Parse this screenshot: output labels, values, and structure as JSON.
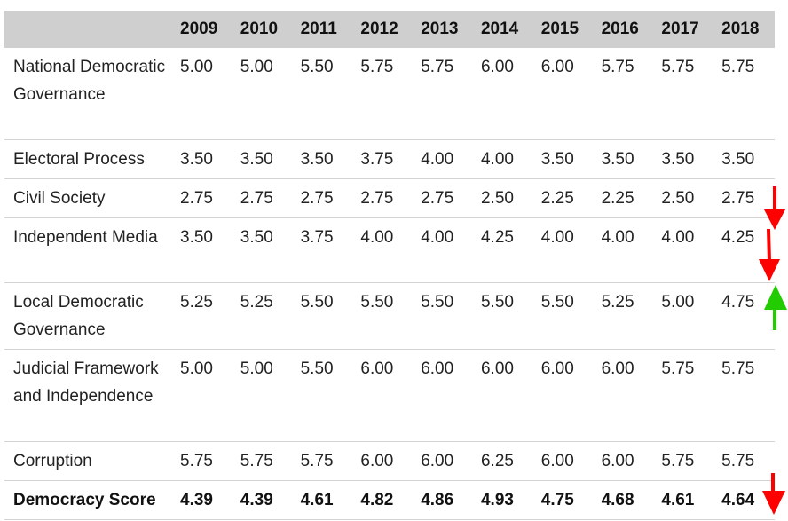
{
  "table": {
    "headers": [
      "",
      "2009",
      "2010",
      "2011",
      "2012",
      "2013",
      "2014",
      "2015",
      "2016",
      "2017",
      "2018"
    ],
    "rows": [
      {
        "label": "National Democratic Governance",
        "values": [
          "5.00",
          "5.00",
          "5.50",
          "5.75",
          "5.75",
          "6.00",
          "6.00",
          "5.75",
          "5.75",
          "5.75"
        ]
      },
      {
        "label": "Electoral Process",
        "values": [
          "3.50",
          "3.50",
          "3.50",
          "3.75",
          "4.00",
          "4.00",
          "3.50",
          "3.50",
          "3.50",
          "3.50"
        ]
      },
      {
        "label": "Civil Society",
        "values": [
          "2.75",
          "2.75",
          "2.75",
          "2.75",
          "2.75",
          "2.50",
          "2.25",
          "2.25",
          "2.50",
          "2.75"
        ]
      },
      {
        "label": "Independent Media",
        "values": [
          "3.50",
          "3.50",
          "3.75",
          "4.00",
          "4.00",
          "4.25",
          "4.00",
          "4.00",
          "4.00",
          "4.25"
        ]
      },
      {
        "label": "Local Democratic Governance",
        "values": [
          "5.25",
          "5.25",
          "5.50",
          "5.50",
          "5.50",
          "5.50",
          "5.50",
          "5.25",
          "5.00",
          "4.75"
        ]
      },
      {
        "label": "Judicial Framework and Independence",
        "values": [
          "5.00",
          "5.00",
          "5.50",
          "6.00",
          "6.00",
          "6.00",
          "6.00",
          "6.00",
          "5.75",
          "5.75"
        ]
      },
      {
        "label": "Corruption",
        "values": [
          "5.75",
          "5.75",
          "5.75",
          "6.00",
          "6.00",
          "6.25",
          "6.00",
          "6.00",
          "5.75",
          "5.75"
        ]
      },
      {
        "label": "Democracy Score",
        "values": [
          "4.39",
          "4.39",
          "4.61",
          "4.82",
          "4.86",
          "4.93",
          "4.75",
          "4.68",
          "4.61",
          "4.64"
        ]
      }
    ]
  },
  "annotations": [
    {
      "row": "Civil Society",
      "icon": "arrow-down-icon",
      "color": "#ff0000"
    },
    {
      "row": "Independent Media",
      "icon": "arrow-down-icon",
      "color": "#ff0000"
    },
    {
      "row": "Local Democratic Governance",
      "icon": "arrow-up-icon",
      "color": "#22cc00"
    },
    {
      "row": "Democracy Score",
      "icon": "arrow-down-icon",
      "color": "#ff0000"
    }
  ]
}
